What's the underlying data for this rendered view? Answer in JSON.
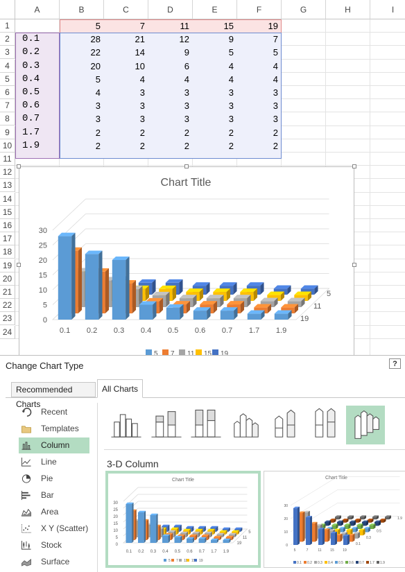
{
  "sheet": {
    "columns": [
      "A",
      "B",
      "C",
      "D",
      "E",
      "F",
      "G",
      "H",
      "I"
    ],
    "rows": [
      "1",
      "2",
      "3",
      "4",
      "5",
      "6",
      "7",
      "8",
      "9",
      "10",
      "11",
      "12",
      "13",
      "14",
      "15",
      "16",
      "17",
      "18",
      "19",
      "20",
      "21",
      "22",
      "23",
      "24"
    ],
    "header_row": [
      "",
      "5",
      "7",
      "11",
      "15",
      "19"
    ],
    "data_rows": [
      [
        "0.1",
        "28",
        "21",
        "12",
        "9",
        "7"
      ],
      [
        "0.2",
        "22",
        "14",
        "9",
        "5",
        "5"
      ],
      [
        "0.3",
        "20",
        "10",
        "6",
        "4",
        "4"
      ],
      [
        "0.4",
        "5",
        "4",
        "4",
        "4",
        "4"
      ],
      [
        "0.5",
        "4",
        "3",
        "3",
        "3",
        "3"
      ],
      [
        "0.6",
        "3",
        "3",
        "3",
        "3",
        "3"
      ],
      [
        "0.7",
        "3",
        "3",
        "3",
        "3",
        "3"
      ],
      [
        "1.7",
        "2",
        "2",
        "2",
        "2",
        "2"
      ],
      [
        "1.9",
        "2",
        "2",
        "2",
        "2",
        "2"
      ]
    ]
  },
  "chart_data": {
    "type": "bar",
    "title": "Chart Title",
    "categories": [
      "0.1",
      "0.2",
      "0.3",
      "0.4",
      "0.5",
      "0.6",
      "0.7",
      "1.7",
      "1.9"
    ],
    "series": [
      {
        "name": "5",
        "values": [
          28,
          22,
          20,
          5,
          4,
          3,
          3,
          2,
          2
        ],
        "color": "#5b9bd5"
      },
      {
        "name": "7",
        "values": [
          21,
          14,
          10,
          4,
          3,
          3,
          3,
          2,
          2
        ],
        "color": "#ed7d31"
      },
      {
        "name": "11",
        "values": [
          12,
          9,
          6,
          4,
          3,
          3,
          3,
          2,
          2
        ],
        "color": "#a5a5a5"
      },
      {
        "name": "15",
        "values": [
          9,
          5,
          4,
          4,
          3,
          3,
          3,
          2,
          2
        ],
        "color": "#ffc000"
      },
      {
        "name": "19",
        "values": [
          7,
          5,
          4,
          4,
          3,
          3,
          3,
          2,
          2
        ],
        "color": "#4472c4"
      }
    ],
    "depth_labels": [
      "5",
      "11",
      "19"
    ],
    "yticks": [
      "0",
      "5",
      "10",
      "15",
      "20",
      "25",
      "30"
    ],
    "ylim": [
      0,
      30
    ],
    "legend": "bottom",
    "style": "3-D Column"
  },
  "dialog": {
    "title": "Change Chart Type",
    "help": "?",
    "tabs": [
      {
        "label": "Recommended Charts"
      },
      {
        "label": "All Charts"
      }
    ],
    "categories": [
      {
        "label": "Recent",
        "icon": "recent-icon"
      },
      {
        "label": "Templates",
        "icon": "folder-icon"
      },
      {
        "label": "Column",
        "icon": "column-chart-icon"
      },
      {
        "label": "Line",
        "icon": "line-chart-icon"
      },
      {
        "label": "Pie",
        "icon": "pie-chart-icon"
      },
      {
        "label": "Bar",
        "icon": "bar-chart-icon"
      },
      {
        "label": "Area",
        "icon": "area-chart-icon"
      },
      {
        "label": "X Y (Scatter)",
        "icon": "scatter-chart-icon"
      },
      {
        "label": "Stock",
        "icon": "stock-chart-icon"
      },
      {
        "label": "Surface",
        "icon": "surface-chart-icon"
      }
    ],
    "selected_category": "Column",
    "section_title": "3-D Column",
    "preview_title": "Chart Title",
    "preview2_legend": [
      "0.1",
      "0.2",
      "0.3",
      "0.4",
      "0.5",
      "0.6",
      "0.7",
      "1.7",
      "1.9"
    ]
  },
  "colors": {
    "selection_green": "#b3dcc2",
    "header_highlight": "#fbe3e3",
    "row_highlight": "#efe6f3",
    "data_highlight": "#eef0fb"
  }
}
